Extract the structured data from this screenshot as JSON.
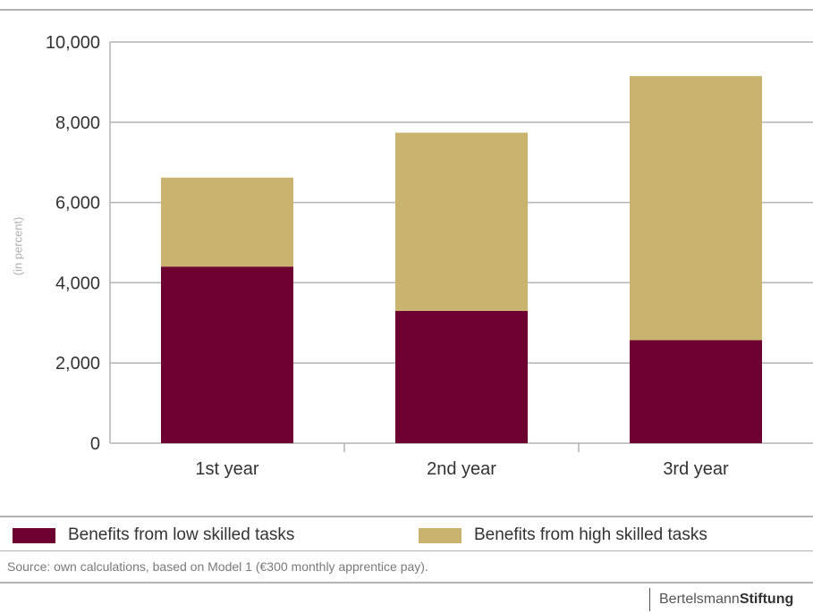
{
  "chart_data": {
    "type": "bar",
    "stacked": true,
    "categories": [
      "1st year",
      "2nd year",
      "3rd year"
    ],
    "series": [
      {
        "name": "Benefits from low skilled tasks",
        "values": [
          4400,
          3300,
          2570
        ],
        "color": "#6d0030"
      },
      {
        "name": "Benefits from high skilled tasks",
        "values": [
          2220,
          4440,
          6580
        ],
        "color": "#c8b46e"
      }
    ],
    "ylabel": "(in percent)",
    "ylim": [
      0,
      10000
    ],
    "yticks": [
      0,
      2000,
      4000,
      6000,
      8000,
      10000
    ],
    "ytick_labels": [
      "0",
      "2,000",
      "4,000",
      "6,000",
      "8,000",
      "10,000"
    ],
    "grid": true,
    "legend_position": "bottom"
  },
  "legend": {
    "low_label": "Benefits from low skilled tasks",
    "high_label": "Benefits from high skilled tasks"
  },
  "source": "Source: own calculations, based on Model 1 (€300 monthly apprentice pay).",
  "brand": {
    "light": "Bertelsmann",
    "bold": "Stiftung"
  },
  "colors": {
    "low": "#6d0030",
    "high": "#c8b46e",
    "grid": "#b3b3b3"
  }
}
